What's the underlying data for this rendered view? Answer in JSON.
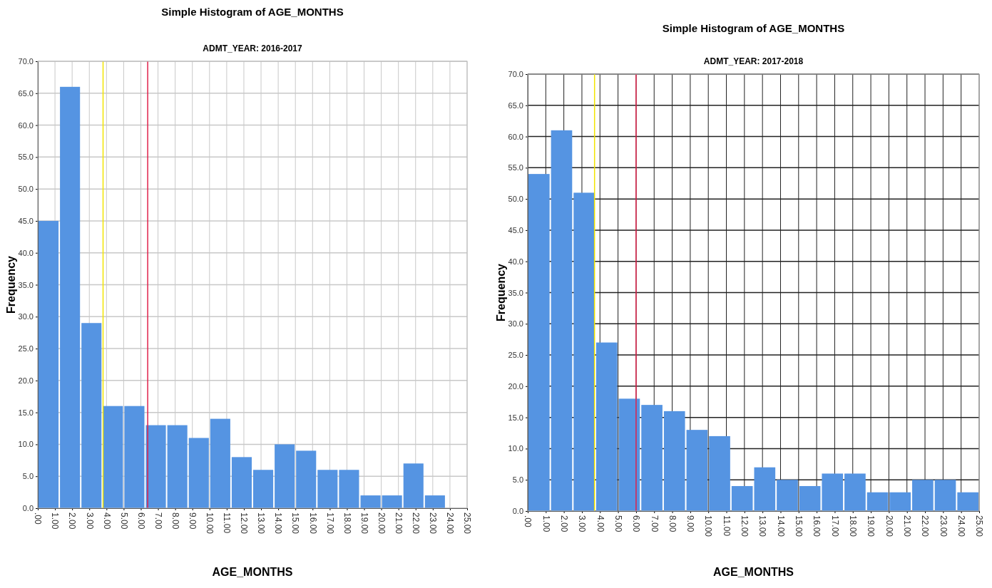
{
  "chart_data": [
    {
      "type": "histogram",
      "title": "Simple Histogram of AGE_MONTHS",
      "subtitle": "ADMT_YEAR: 2016-2017",
      "xlabel": "AGE_MONTHS",
      "ylabel": "Frequency",
      "bins": [
        0,
        1.25,
        2.5,
        3.75,
        5,
        6.25,
        7.5,
        8.75,
        10,
        11.25,
        12.5,
        13.75,
        15,
        16.25,
        17.5,
        18.75,
        20,
        21.25,
        22.5,
        23.75,
        25
      ],
      "values": [
        45,
        66,
        29,
        16,
        16,
        13,
        13,
        11,
        14,
        8,
        6,
        10,
        9,
        6,
        6,
        2,
        2,
        7,
        2,
        0
      ],
      "color": "#5594e2",
      "xlim": [
        0,
        25
      ],
      "ylim": [
        0,
        70
      ],
      "xticks": [
        {
          "value": 0,
          "label": ".00"
        },
        {
          "value": 1,
          "label": "1.00"
        },
        {
          "value": 2,
          "label": "2.00"
        },
        {
          "value": 3,
          "label": "3.00"
        },
        {
          "value": 4,
          "label": "4.00"
        },
        {
          "value": 5,
          "label": "5.00"
        },
        {
          "value": 6,
          "label": "6.00"
        },
        {
          "value": 7,
          "label": "7.00"
        },
        {
          "value": 8,
          "label": "8.00"
        },
        {
          "value": 9,
          "label": "9.00"
        },
        {
          "value": 10,
          "label": "10.00"
        },
        {
          "value": 11,
          "label": "11.00"
        },
        {
          "value": 12,
          "label": "12.00"
        },
        {
          "value": 13,
          "label": "13.00"
        },
        {
          "value": 14,
          "label": "14.00"
        },
        {
          "value": 15,
          "label": "15.00"
        },
        {
          "value": 16,
          "label": "16.00"
        },
        {
          "value": 17,
          "label": "17.00"
        },
        {
          "value": 18,
          "label": "18.00"
        },
        {
          "value": 19,
          "label": "19.00"
        },
        {
          "value": 20,
          "label": "20.00"
        },
        {
          "value": 21,
          "label": "21.00"
        },
        {
          "value": 22,
          "label": "22.00"
        },
        {
          "value": 23,
          "label": "23.00"
        },
        {
          "value": 24,
          "label": "24.00"
        },
        {
          "value": 25,
          "label": "25.00"
        }
      ],
      "yticks": [
        {
          "value": 0,
          "label": "0.0"
        },
        {
          "value": 5,
          "label": "5.0"
        },
        {
          "value": 10,
          "label": "10.0"
        },
        {
          "value": 15,
          "label": "15.0"
        },
        {
          "value": 20,
          "label": "20.0"
        },
        {
          "value": 25,
          "label": "25.0"
        },
        {
          "value": 30,
          "label": "30.0"
        },
        {
          "value": 35,
          "label": "35.0"
        },
        {
          "value": 40,
          "label": "40.0"
        },
        {
          "value": 45,
          "label": "45.0"
        },
        {
          "value": 50,
          "label": "50.0"
        },
        {
          "value": 55,
          "label": "55.0"
        },
        {
          "value": 60,
          "label": "60.0"
        },
        {
          "value": 65,
          "label": "65.0"
        },
        {
          "value": 70,
          "label": "70.0"
        }
      ],
      "grid": true,
      "ref_lines": [
        {
          "axis": "x",
          "value": 3.8,
          "color": "#f2e400"
        },
        {
          "axis": "x",
          "value": 6.4,
          "color": "#e0204a"
        }
      ]
    },
    {
      "type": "histogram",
      "title": "Simple Histogram of AGE_MONTHS",
      "subtitle": "ADMT_YEAR: 2017-2018",
      "xlabel": "AGE_MONTHS",
      "ylabel": "Frequency",
      "bins": [
        0,
        1.25,
        2.5,
        3.75,
        5,
        6.25,
        7.5,
        8.75,
        10,
        11.25,
        12.5,
        13.75,
        15,
        16.25,
        17.5,
        18.75,
        20,
        21.25,
        22.5,
        23.75,
        25
      ],
      "values": [
        54,
        61,
        51,
        27,
        18,
        17,
        16,
        13,
        12,
        4,
        7,
        5,
        4,
        6,
        6,
        3,
        3,
        5,
        5,
        3
      ],
      "color": "#5594e2",
      "xlim": [
        0,
        25
      ],
      "ylim": [
        0,
        70
      ],
      "xticks": [
        {
          "value": 0,
          "label": ".00"
        },
        {
          "value": 1,
          "label": "1.00"
        },
        {
          "value": 2,
          "label": "2.00"
        },
        {
          "value": 3,
          "label": "3.00"
        },
        {
          "value": 4,
          "label": "4.00"
        },
        {
          "value": 5,
          "label": "5.00"
        },
        {
          "value": 6,
          "label": "6.00"
        },
        {
          "value": 7,
          "label": "7.00"
        },
        {
          "value": 8,
          "label": "8.00"
        },
        {
          "value": 9,
          "label": "9.00"
        },
        {
          "value": 10,
          "label": "10.00"
        },
        {
          "value": 11,
          "label": "11.00"
        },
        {
          "value": 12,
          "label": "12.00"
        },
        {
          "value": 13,
          "label": "13.00"
        },
        {
          "value": 14,
          "label": "14.00"
        },
        {
          "value": 15,
          "label": "15.00"
        },
        {
          "value": 16,
          "label": "16.00"
        },
        {
          "value": 17,
          "label": "17.00"
        },
        {
          "value": 18,
          "label": "18.00"
        },
        {
          "value": 19,
          "label": "19.00"
        },
        {
          "value": 20,
          "label": "20.00"
        },
        {
          "value": 21,
          "label": "21.00"
        },
        {
          "value": 22,
          "label": "22.00"
        },
        {
          "value": 23,
          "label": "23.00"
        },
        {
          "value": 24,
          "label": "24.00"
        },
        {
          "value": 25,
          "label": "25.00"
        }
      ],
      "yticks": [
        {
          "value": 0,
          "label": "0.0"
        },
        {
          "value": 5,
          "label": "5.0"
        },
        {
          "value": 10,
          "label": "10.0"
        },
        {
          "value": 15,
          "label": "15.0"
        },
        {
          "value": 20,
          "label": "20.0"
        },
        {
          "value": 25,
          "label": "25.0"
        },
        {
          "value": 30,
          "label": "30.0"
        },
        {
          "value": 35,
          "label": "35.0"
        },
        {
          "value": 40,
          "label": "40.0"
        },
        {
          "value": 45,
          "label": "45.0"
        },
        {
          "value": 50,
          "label": "50.0"
        },
        {
          "value": 55,
          "label": "55.0"
        },
        {
          "value": 60,
          "label": "60.0"
        },
        {
          "value": 65,
          "label": "65.0"
        },
        {
          "value": 70,
          "label": "70.0"
        }
      ],
      "grid": true,
      "ref_lines": [
        {
          "axis": "x",
          "value": 3.7,
          "color": "#f2e400"
        },
        {
          "axis": "x",
          "value": 6.0,
          "color": "#e0204a"
        }
      ]
    }
  ]
}
